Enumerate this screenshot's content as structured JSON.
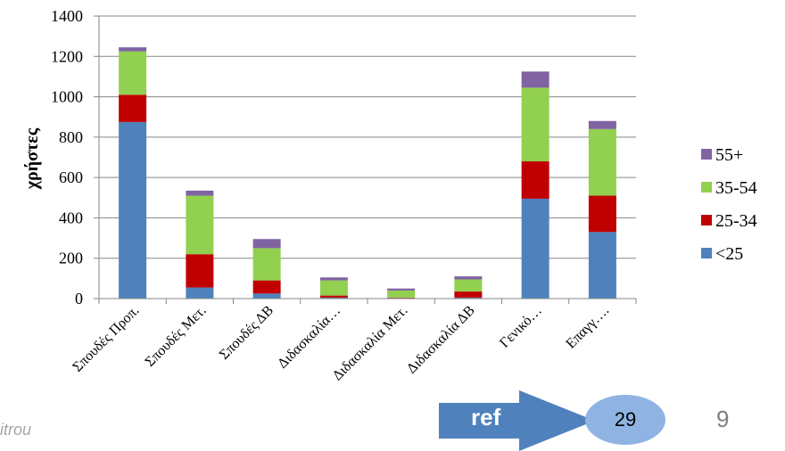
{
  "chart_data": {
    "type": "bar",
    "stacked": true,
    "categories": [
      "Σπουδές Προπ.",
      "Σπουδές Μετ.",
      "Σπουδές ΔΒ",
      "Διδασκαλία…",
      "Διδασκαλία Μετ.",
      "Διδασκαλία ΔΒ",
      "Γενικό…",
      "Επαγγ…."
    ],
    "series": [
      {
        "name": "<25",
        "color": "#4f81bd",
        "values": [
          875,
          55,
          25,
          5,
          3,
          5,
          495,
          330
        ]
      },
      {
        "name": "25-34",
        "color": "#c00000",
        "values": [
          135,
          165,
          65,
          10,
          2,
          30,
          185,
          180
        ]
      },
      {
        "name": "35-54",
        "color": "#92d050",
        "values": [
          215,
          290,
          160,
          75,
          35,
          60,
          365,
          330
        ]
      },
      {
        "name": "55+",
        "color": "#8064a2",
        "values": [
          20,
          25,
          45,
          15,
          10,
          15,
          80,
          40
        ]
      }
    ],
    "ylabel": "χρήστες",
    "xlabel": "",
    "ylim": [
      0,
      1400
    ],
    "yticks": [
      0,
      200,
      400,
      600,
      800,
      1000,
      1200,
      1400
    ],
    "grid": true,
    "legend": "right",
    "legend_order": [
      "55+",
      "35-54",
      "25-34",
      "<25"
    ]
  },
  "footer": {
    "author_fragment": "itrou",
    "ref_label": "ref",
    "ref_number": "29",
    "page_number": "9"
  }
}
